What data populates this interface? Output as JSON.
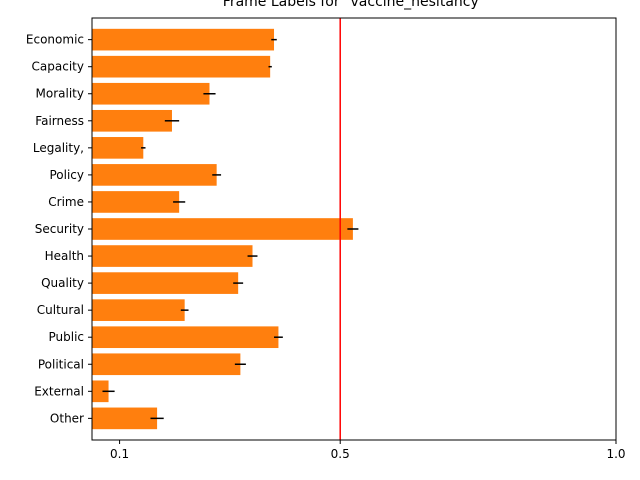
{
  "chart_data": {
    "type": "bar",
    "orientation": "horizontal",
    "title": "Frame Labels for \"vaccine_hesitancy\"",
    "xlabel": "",
    "ylabel": "",
    "xlim": [
      0.05,
      1.0
    ],
    "xticks": [
      0.1,
      0.5,
      1.0
    ],
    "xtick_labels": [
      "0.1",
      "0.5",
      "1.0"
    ],
    "grid": false,
    "bar_color": "#ff7f0e",
    "error_color": "#000000",
    "reference_line": {
      "x": 0.5,
      "color": "#ff0000"
    },
    "categories": [
      "Economic",
      "Capacity",
      "Morality",
      "Fairness",
      "Legality,",
      "Policy",
      "Crime",
      "Security",
      "Health",
      "Quality",
      "Cultural",
      "Public",
      "Political",
      "External",
      "Other"
    ],
    "values": [
      0.38,
      0.373,
      0.263,
      0.195,
      0.143,
      0.276,
      0.208,
      0.523,
      0.341,
      0.315,
      0.218,
      0.388,
      0.319,
      0.08,
      0.168
    ],
    "errors": [
      0.005,
      0.003,
      0.011,
      0.013,
      0.004,
      0.008,
      0.011,
      0.01,
      0.009,
      0.009,
      0.007,
      0.008,
      0.01,
      0.011,
      0.012
    ]
  }
}
